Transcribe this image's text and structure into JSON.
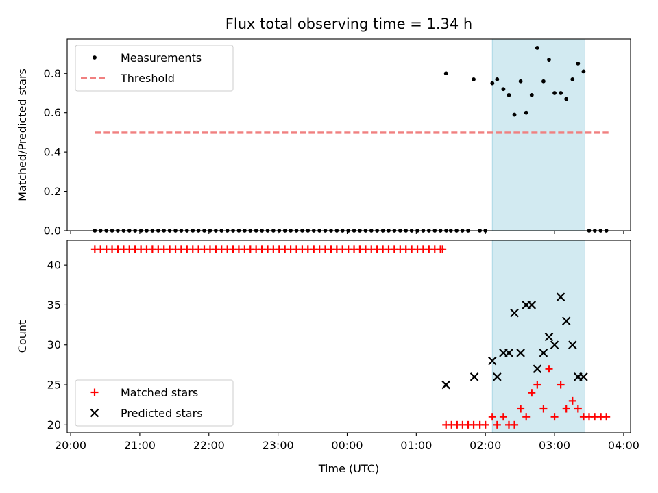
{
  "chart_data": {
    "type": "scatter",
    "title": "Flux total observing time = 1.34 h",
    "xlabel": "Time (UTC)",
    "x_unit": "hours since 20:00 UTC (axis spans 20:00 to 04:00 next day)",
    "xlim": [
      -0.05,
      8.1
    ],
    "xticks": [
      0,
      1,
      2,
      3,
      4,
      5,
      6,
      7,
      8
    ],
    "xtick_labels": [
      "20:00",
      "21:00",
      "22:00",
      "23:00",
      "00:00",
      "01:00",
      "02:00",
      "03:00",
      "04:00"
    ],
    "highlight_span": {
      "x_start": 6.1,
      "x_end": 7.44,
      "color": "#add8e6"
    },
    "panels": [
      {
        "id": "top",
        "ylabel": "Matched/Predicted stars",
        "ylim": [
          0,
          0.975
        ],
        "yticks": [
          0.0,
          0.2,
          0.4,
          0.6,
          0.8
        ],
        "ytick_labels": [
          "0.0",
          "0.2",
          "0.4",
          "0.6",
          "0.8"
        ],
        "legend": {
          "placement": "top-left",
          "entries": [
            "Measurements",
            "Threshold"
          ]
        },
        "series": [
          {
            "name": "Measurements",
            "marker": "dot",
            "color": "#000000",
            "points": [
              [
                0.35,
                0
              ],
              [
                0.433,
                0
              ],
              [
                0.517,
                0
              ],
              [
                0.6,
                0
              ],
              [
                0.683,
                0
              ],
              [
                0.767,
                0
              ],
              [
                0.85,
                0
              ],
              [
                0.933,
                0
              ],
              [
                1.017,
                0
              ],
              [
                1.1,
                0
              ],
              [
                1.183,
                0
              ],
              [
                1.267,
                0
              ],
              [
                1.35,
                0
              ],
              [
                1.433,
                0
              ],
              [
                1.517,
                0
              ],
              [
                1.6,
                0
              ],
              [
                1.683,
                0
              ],
              [
                1.767,
                0
              ],
              [
                1.85,
                0
              ],
              [
                1.933,
                0
              ],
              [
                2.017,
                0
              ],
              [
                2.1,
                0
              ],
              [
                2.183,
                0
              ],
              [
                2.267,
                0
              ],
              [
                2.35,
                0
              ],
              [
                2.433,
                0
              ],
              [
                2.517,
                0
              ],
              [
                2.6,
                0
              ],
              [
                2.683,
                0
              ],
              [
                2.767,
                0
              ],
              [
                2.85,
                0
              ],
              [
                2.933,
                0
              ],
              [
                3.017,
                0
              ],
              [
                3.1,
                0
              ],
              [
                3.183,
                0
              ],
              [
                3.267,
                0
              ],
              [
                3.35,
                0
              ],
              [
                3.433,
                0
              ],
              [
                3.517,
                0
              ],
              [
                3.6,
                0
              ],
              [
                3.683,
                0
              ],
              [
                3.767,
                0
              ],
              [
                3.85,
                0
              ],
              [
                3.933,
                0
              ],
              [
                4.017,
                0
              ],
              [
                4.1,
                0
              ],
              [
                4.183,
                0
              ],
              [
                4.267,
                0
              ],
              [
                4.35,
                0
              ],
              [
                4.433,
                0
              ],
              [
                4.517,
                0
              ],
              [
                4.6,
                0
              ],
              [
                4.683,
                0
              ],
              [
                4.767,
                0
              ],
              [
                4.85,
                0
              ],
              [
                4.933,
                0
              ],
              [
                5.017,
                0
              ],
              [
                5.1,
                0
              ],
              [
                5.183,
                0
              ],
              [
                5.267,
                0
              ],
              [
                5.35,
                0
              ],
              [
                5.433,
                0
              ],
              [
                5.43,
                0.8
              ],
              [
                5.5,
                0
              ],
              [
                5.583,
                0
              ],
              [
                5.667,
                0
              ],
              [
                5.75,
                0
              ],
              [
                5.83,
                0.77
              ],
              [
                5.92,
                0
              ],
              [
                6.0,
                0
              ],
              [
                6.1,
                0.75
              ],
              [
                6.17,
                0.77
              ],
              [
                6.26,
                0.72
              ],
              [
                6.34,
                0.69
              ],
              [
                6.42,
                0.59
              ],
              [
                6.51,
                0.76
              ],
              [
                6.59,
                0.6
              ],
              [
                6.67,
                0.69
              ],
              [
                6.75,
                0.93
              ],
              [
                6.84,
                0.76
              ],
              [
                6.92,
                0.87
              ],
              [
                7.0,
                0.7
              ],
              [
                7.09,
                0.7
              ],
              [
                7.17,
                0.67
              ],
              [
                7.26,
                0.77
              ],
              [
                7.34,
                0.85
              ],
              [
                7.42,
                0.81
              ],
              [
                7.5,
                0
              ],
              [
                7.583,
                0
              ],
              [
                7.667,
                0
              ],
              [
                7.75,
                0
              ]
            ]
          },
          {
            "name": "Threshold",
            "marker": "dashed-line",
            "color": "#f08080",
            "points": [
              [
                0.35,
                0.5
              ],
              [
                7.78,
                0.5
              ]
            ]
          }
        ]
      },
      {
        "id": "bottom",
        "ylabel": "Count",
        "ylim": [
          19,
          43.1
        ],
        "yticks": [
          20,
          25,
          30,
          35,
          40
        ],
        "ytick_labels": [
          "20",
          "25",
          "30",
          "35",
          "40"
        ],
        "legend": {
          "placement": "bottom-left",
          "entries": [
            "Matched stars",
            "Predicted stars"
          ]
        },
        "series": [
          {
            "name": "Matched stars",
            "marker": "plus",
            "color": "#ff0000",
            "points": [
              [
                0.35,
                42
              ],
              [
                0.433,
                42
              ],
              [
                0.517,
                42
              ],
              [
                0.6,
                42
              ],
              [
                0.683,
                42
              ],
              [
                0.767,
                42
              ],
              [
                0.85,
                42
              ],
              [
                0.933,
                42
              ],
              [
                1.017,
                42
              ],
              [
                1.1,
                42
              ],
              [
                1.183,
                42
              ],
              [
                1.267,
                42
              ],
              [
                1.35,
                42
              ],
              [
                1.433,
                42
              ],
              [
                1.517,
                42
              ],
              [
                1.6,
                42
              ],
              [
                1.683,
                42
              ],
              [
                1.767,
                42
              ],
              [
                1.85,
                42
              ],
              [
                1.933,
                42
              ],
              [
                2.017,
                42
              ],
              [
                2.1,
                42
              ],
              [
                2.183,
                42
              ],
              [
                2.267,
                42
              ],
              [
                2.35,
                42
              ],
              [
                2.433,
                42
              ],
              [
                2.517,
                42
              ],
              [
                2.6,
                42
              ],
              [
                2.683,
                42
              ],
              [
                2.767,
                42
              ],
              [
                2.85,
                42
              ],
              [
                2.933,
                42
              ],
              [
                3.017,
                42
              ],
              [
                3.1,
                42
              ],
              [
                3.183,
                42
              ],
              [
                3.267,
                42
              ],
              [
                3.35,
                42
              ],
              [
                3.433,
                42
              ],
              [
                3.517,
                42
              ],
              [
                3.6,
                42
              ],
              [
                3.683,
                42
              ],
              [
                3.767,
                42
              ],
              [
                3.85,
                42
              ],
              [
                3.933,
                42
              ],
              [
                4.017,
                42
              ],
              [
                4.1,
                42
              ],
              [
                4.183,
                42
              ],
              [
                4.267,
                42
              ],
              [
                4.35,
                42
              ],
              [
                4.433,
                42
              ],
              [
                4.517,
                42
              ],
              [
                4.6,
                42
              ],
              [
                4.683,
                42
              ],
              [
                4.767,
                42
              ],
              [
                4.85,
                42
              ],
              [
                4.933,
                42
              ],
              [
                5.017,
                42
              ],
              [
                5.1,
                42
              ],
              [
                5.183,
                42
              ],
              [
                5.267,
                42
              ],
              [
                5.35,
                42
              ],
              [
                5.38,
                42
              ],
              [
                5.43,
                20
              ],
              [
                5.51,
                20
              ],
              [
                5.59,
                20
              ],
              [
                5.67,
                20
              ],
              [
                5.75,
                20
              ],
              [
                5.83,
                20
              ],
              [
                5.92,
                20
              ],
              [
                6.0,
                20
              ],
              [
                6.1,
                21
              ],
              [
                6.17,
                20
              ],
              [
                6.26,
                21
              ],
              [
                6.34,
                20
              ],
              [
                6.42,
                20
              ],
              [
                6.51,
                22
              ],
              [
                6.59,
                21
              ],
              [
                6.67,
                24
              ],
              [
                6.75,
                25
              ],
              [
                6.84,
                22
              ],
              [
                6.92,
                27
              ],
              [
                7.0,
                21
              ],
              [
                7.09,
                25
              ],
              [
                7.17,
                22
              ],
              [
                7.26,
                23
              ],
              [
                7.34,
                22
              ],
              [
                7.42,
                21
              ],
              [
                7.5,
                21
              ],
              [
                7.58,
                21
              ],
              [
                7.67,
                21
              ],
              [
                7.75,
                21
              ]
            ]
          },
          {
            "name": "Predicted stars",
            "marker": "cross",
            "color": "#000000",
            "points": [
              [
                5.43,
                25
              ],
              [
                5.84,
                26
              ],
              [
                6.1,
                28
              ],
              [
                6.17,
                26
              ],
              [
                6.26,
                29
              ],
              [
                6.34,
                29
              ],
              [
                6.42,
                34
              ],
              [
                6.51,
                29
              ],
              [
                6.59,
                35
              ],
              [
                6.67,
                35
              ],
              [
                6.75,
                27
              ],
              [
                6.84,
                29
              ],
              [
                6.92,
                31
              ],
              [
                7.0,
                30
              ],
              [
                7.09,
                36
              ],
              [
                7.17,
                33
              ],
              [
                7.26,
                30
              ],
              [
                7.34,
                26
              ],
              [
                7.42,
                26
              ]
            ]
          }
        ]
      }
    ]
  }
}
